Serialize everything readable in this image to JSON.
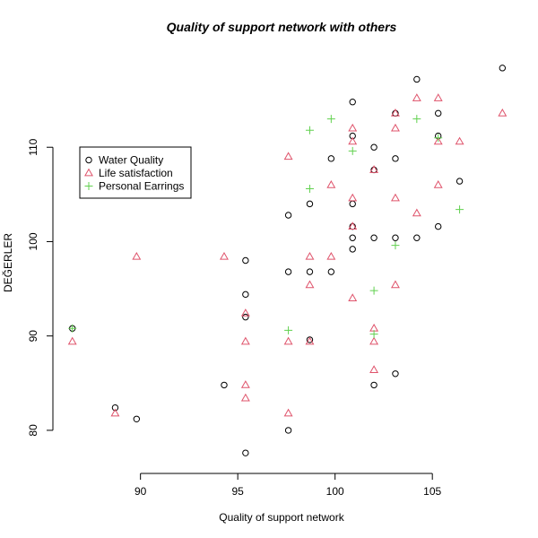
{
  "chart_data": {
    "type": "scatter",
    "title": "Quality of support network with others",
    "xlabel": "Quality of support network",
    "ylabel": "DEĞERLER",
    "xlim": [
      85.5,
      109
    ],
    "ylim": [
      76,
      120
    ],
    "xticks": [
      90,
      95,
      100,
      105
    ],
    "yticks": [
      80,
      90,
      100,
      110
    ],
    "grid": false,
    "legend_position": "top-left",
    "series": [
      {
        "name": "Water Quality",
        "marker": "circle",
        "color": "#000000",
        "points": [
          [
            86.5,
            90.8
          ],
          [
            88.7,
            82.4
          ],
          [
            89.8,
            81.2
          ],
          [
            94.3,
            84.8
          ],
          [
            95.4,
            98.0
          ],
          [
            95.4,
            94.4
          ],
          [
            95.4,
            92.0
          ],
          [
            95.4,
            77.6
          ],
          [
            97.6,
            102.8
          ],
          [
            97.6,
            96.8
          ],
          [
            97.6,
            80.0
          ],
          [
            98.7,
            104.0
          ],
          [
            98.7,
            96.8
          ],
          [
            98.7,
            89.6
          ],
          [
            99.8,
            108.8
          ],
          [
            99.8,
            96.8
          ],
          [
            100.9,
            114.8
          ],
          [
            100.9,
            111.2
          ],
          [
            100.9,
            104.0
          ],
          [
            100.9,
            101.6
          ],
          [
            100.9,
            100.4
          ],
          [
            100.9,
            99.2
          ],
          [
            102.0,
            110.0
          ],
          [
            102.0,
            107.6
          ],
          [
            102.0,
            100.4
          ],
          [
            102.0,
            84.8
          ],
          [
            103.1,
            113.6
          ],
          [
            103.1,
            108.8
          ],
          [
            103.1,
            100.4
          ],
          [
            103.1,
            86.0
          ],
          [
            104.2,
            117.2
          ],
          [
            104.2,
            100.4
          ],
          [
            105.3,
            113.6
          ],
          [
            105.3,
            111.2
          ],
          [
            105.3,
            101.6
          ],
          [
            106.4,
            106.4
          ],
          [
            108.6,
            118.4
          ]
        ]
      },
      {
        "name": "Life satisfaction",
        "marker": "triangle",
        "color": "#DF536B",
        "points": [
          [
            86.5,
            89.4
          ],
          [
            88.7,
            81.8
          ],
          [
            89.8,
            98.4
          ],
          [
            94.3,
            98.4
          ],
          [
            95.4,
            92.4
          ],
          [
            95.4,
            89.4
          ],
          [
            95.4,
            84.8
          ],
          [
            95.4,
            83.4
          ],
          [
            97.6,
            109.0
          ],
          [
            97.6,
            89.4
          ],
          [
            97.6,
            81.8
          ],
          [
            98.7,
            98.4
          ],
          [
            98.7,
            95.4
          ],
          [
            98.7,
            89.4
          ],
          [
            99.8,
            106.0
          ],
          [
            99.8,
            98.4
          ],
          [
            100.9,
            112.0
          ],
          [
            100.9,
            110.6
          ],
          [
            100.9,
            104.6
          ],
          [
            100.9,
            101.6
          ],
          [
            100.9,
            94.0
          ],
          [
            102.0,
            107.6
          ],
          [
            102.0,
            90.8
          ],
          [
            102.0,
            89.4
          ],
          [
            102.0,
            86.4
          ],
          [
            103.1,
            113.6
          ],
          [
            103.1,
            112.0
          ],
          [
            103.1,
            104.6
          ],
          [
            103.1,
            95.4
          ],
          [
            104.2,
            115.2
          ],
          [
            104.2,
            103.0
          ],
          [
            105.3,
            115.2
          ],
          [
            105.3,
            110.6
          ],
          [
            105.3,
            106.0
          ],
          [
            106.4,
            110.6
          ],
          [
            108.6,
            113.6
          ]
        ]
      },
      {
        "name": "Personal Earrings",
        "marker": "plus",
        "color": "#61D04F",
        "points": [
          [
            86.5,
            90.8
          ],
          [
            97.6,
            90.6
          ],
          [
            98.7,
            105.6
          ],
          [
            98.7,
            111.8
          ],
          [
            99.8,
            113.0
          ],
          [
            100.9,
            109.6
          ],
          [
            102.0,
            94.8
          ],
          [
            102.0,
            90.2
          ],
          [
            103.1,
            99.6
          ],
          [
            104.2,
            113.0
          ],
          [
            105.3,
            111.0
          ],
          [
            106.4,
            103.4
          ]
        ]
      }
    ]
  }
}
